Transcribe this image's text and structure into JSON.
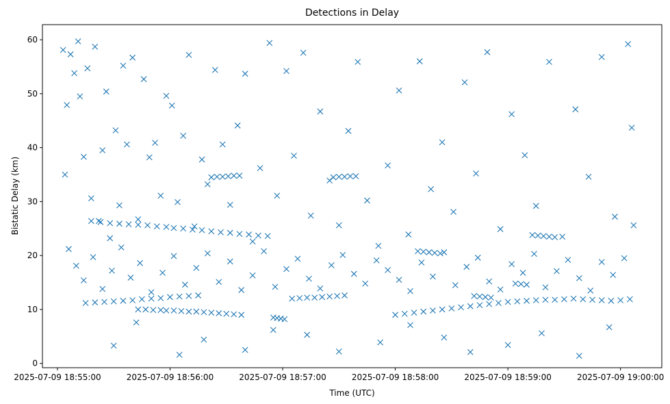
{
  "chart_data": {
    "type": "scatter",
    "title": "Detections in Delay",
    "xlabel": "Time (UTC)",
    "ylabel": "Bistatic Delay (km)",
    "x_tick_labels": [
      "2025-07-09 18:55:00",
      "2025-07-09 18:56:00",
      "2025-07-09 18:57:00",
      "2025-07-09 18:58:00",
      "2025-07-09 18:59:00",
      "2025-07-09 19:00:00"
    ],
    "y_ticks": [
      0,
      10,
      20,
      30,
      40,
      50,
      60
    ],
    "xlim": [
      "2025-07-09 18:54:52",
      "2025-07-09 19:00:22"
    ],
    "ylim": [
      -0.8,
      62.8
    ],
    "grid": false,
    "marker": "x",
    "color": "#1f77b4",
    "series": [
      {
        "x": [
          "2025-07-09 18:55:03",
          "2025-07-09 18:55:04",
          "2025-07-09 18:55:05",
          "2025-07-09 18:55:07",
          "2025-07-09 18:55:09",
          "2025-07-09 18:55:11",
          "2025-07-09 18:55:12",
          "2025-07-09 18:55:14",
          "2025-07-09 18:55:16",
          "2025-07-09 18:55:18",
          "2025-07-09 18:55:20",
          "2025-07-09 18:55:22",
          "2025-07-09 18:55:24",
          "2025-07-09 18:55:26",
          "2025-07-09 18:55:28",
          "2025-07-09 18:55:31",
          "2025-07-09 18:55:33",
          "2025-07-09 18:55:35",
          "2025-07-09 18:55:37",
          "2025-07-09 18:55:40",
          "2025-07-09 18:55:43",
          "2025-07-09 18:55:46",
          "2025-07-09 18:55:49",
          "2025-07-09 18:55:52",
          "2025-07-09 18:55:55",
          "2025-07-09 18:55:58",
          "2025-07-09 18:56:01",
          "2025-07-09 18:56:04",
          "2025-07-09 18:56:07",
          "2025-07-09 18:56:10",
          "2025-07-09 18:56:13",
          "2025-07-09 18:56:17",
          "2025-07-09 18:56:20",
          "2025-07-09 18:56:24",
          "2025-07-09 18:56:28",
          "2025-07-09 18:56:32",
          "2025-07-09 18:56:36",
          "2025-07-09 18:56:40",
          "2025-07-09 18:56:44",
          "2025-07-09 18:56:48",
          "2025-07-09 18:56:53",
          "2025-07-09 18:56:57",
          "2025-07-09 18:57:02",
          "2025-07-09 18:57:06",
          "2025-07-09 18:57:11",
          "2025-07-09 18:57:15",
          "2025-07-09 18:57:20",
          "2025-07-09 18:57:25",
          "2025-07-09 18:57:30",
          "2025-07-09 18:57:35",
          "2025-07-09 18:57:40",
          "2025-07-09 18:57:45",
          "2025-07-09 18:57:51",
          "2025-07-09 18:57:56",
          "2025-07-09 18:58:02",
          "2025-07-09 18:58:07",
          "2025-07-09 18:58:13",
          "2025-07-09 18:58:19",
          "2025-07-09 18:58:25",
          "2025-07-09 18:58:31",
          "2025-07-09 18:58:37",
          "2025-07-09 18:58:43",
          "2025-07-09 18:58:49",
          "2025-07-09 18:58:56",
          "2025-07-09 18:59:02",
          "2025-07-09 18:59:09",
          "2025-07-09 18:59:15",
          "2025-07-09 18:59:22",
          "2025-07-09 18:59:29",
          "2025-07-09 18:59:36",
          "2025-07-09 18:59:43",
          "2025-07-09 18:59:50",
          "2025-07-09 18:59:57",
          "2025-07-09 19:00:04",
          "2025-07-09 19:00:06",
          "2025-07-09 19:00:07",
          "2025-07-09 18:55:30",
          "2025-07-09 18:55:42",
          "2025-07-09 18:56:05",
          "2025-07-09 18:56:18",
          "2025-07-09 18:56:40",
          "2025-07-09 18:56:55",
          "2025-07-09 18:57:13",
          "2025-07-09 18:57:30",
          "2025-07-09 18:57:52",
          "2025-07-09 18:58:08",
          "2025-07-09 18:58:26",
          "2025-07-09 18:58:40",
          "2025-07-09 18:59:00",
          "2025-07-09 18:59:18",
          "2025-07-09 18:59:38",
          "2025-07-09 18:59:54"
        ],
        "y": [
          58.1,
          35,
          47.9,
          57.3,
          53.8,
          59.7,
          49.5,
          38.3,
          54.7,
          30.6,
          58.7,
          26.4,
          39.5,
          50.4,
          23.2,
          43.2,
          29.3,
          55.2,
          40.6,
          56.7,
          26.7,
          52.7,
          38.2,
          40.9,
          31.1,
          49.6,
          47.8,
          29.9,
          42.2,
          57.2,
          25.4,
          37.8,
          33.2,
          54.4,
          40.6,
          29.4,
          44.1,
          53.7,
          22.6,
          36.2,
          59.4,
          31.1,
          54.2,
          38.5,
          57.6,
          27.4,
          46.7,
          33.9,
          25.6,
          43.1,
          55.9,
          30.2,
          21.8,
          36.7,
          50.6,
          23.9,
          56,
          32.3,
          41,
          28.1,
          52.1,
          35.2,
          57.7,
          24.9,
          46.2,
          38.6,
          29.2,
          55.9,
          23.5,
          47.1,
          34.6,
          56.8,
          27.2,
          59.2,
          43.7,
          25.6,
          3.3,
          7.6,
          1.6,
          4.4,
          2.5,
          6.2,
          5.3,
          2.2,
          3.9,
          7.1,
          4.8,
          2.1,
          3.4,
          5.6,
          1.4,
          6.7
        ]
      },
      {
        "x": [
          "2025-07-09 18:55:18",
          "2025-07-09 18:55:23",
          "2025-07-09 18:55:28",
          "2025-07-09 18:55:33",
          "2025-07-09 18:55:38",
          "2025-07-09 18:55:43",
          "2025-07-09 18:55:48",
          "2025-07-09 18:55:53",
          "2025-07-09 18:55:58",
          "2025-07-09 18:56:02",
          "2025-07-09 18:56:07",
          "2025-07-09 18:56:12",
          "2025-07-09 18:56:17",
          "2025-07-09 18:56:22",
          "2025-07-09 18:56:27",
          "2025-07-09 18:56:32",
          "2025-07-09 18:56:37",
          "2025-07-09 18:56:42",
          "2025-07-09 18:56:47",
          "2025-07-09 18:56:52"
        ],
        "y": [
          26.4,
          26.2,
          26,
          25.9,
          25.8,
          25.7,
          25.6,
          25.4,
          25.3,
          25.1,
          25,
          24.8,
          24.7,
          24.5,
          24.3,
          24.2,
          24,
          23.9,
          23.7,
          23.6
        ]
      },
      {
        "x": [
          "2025-07-09 18:55:15",
          "2025-07-09 18:55:20",
          "2025-07-09 18:55:25",
          "2025-07-09 18:55:30",
          "2025-07-09 18:55:35",
          "2025-07-09 18:55:40",
          "2025-07-09 18:55:45",
          "2025-07-09 18:55:50",
          "2025-07-09 18:55:55",
          "2025-07-09 18:56:00",
          "2025-07-09 18:56:05",
          "2025-07-09 18:56:10",
          "2025-07-09 18:56:15",
          "2025-07-09 18:55:43",
          "2025-07-09 18:55:47",
          "2025-07-09 18:55:51",
          "2025-07-09 18:55:55",
          "2025-07-09 18:55:58",
          "2025-07-09 18:56:02",
          "2025-07-09 18:56:06",
          "2025-07-09 18:56:10",
          "2025-07-09 18:56:14",
          "2025-07-09 18:56:18",
          "2025-07-09 18:56:22",
          "2025-07-09 18:56:26",
          "2025-07-09 18:56:30",
          "2025-07-09 18:56:34",
          "2025-07-09 18:56:38"
        ],
        "y": [
          11.2,
          11.3,
          11.4,
          11.5,
          11.6,
          11.7,
          11.9,
          12,
          12.1,
          12.3,
          12.4,
          12.5,
          12.6,
          10,
          10,
          9.9,
          9.9,
          9.8,
          9.8,
          9.7,
          9.6,
          9.6,
          9.5,
          9.4,
          9.3,
          9.2,
          9.1,
          9
        ]
      },
      {
        "x": [
          "2025-07-09 18:56:22",
          "2025-07-09 18:56:25",
          "2025-07-09 18:56:28",
          "2025-07-09 18:56:31",
          "2025-07-09 18:56:34",
          "2025-07-09 18:56:37",
          "2025-07-09 18:57:27",
          "2025-07-09 18:57:30",
          "2025-07-09 18:57:33",
          "2025-07-09 18:57:36",
          "2025-07-09 18:57:39"
        ],
        "y": [
          34.5,
          34.6,
          34.6,
          34.7,
          34.8,
          34.8,
          34.5,
          34.6,
          34.6,
          34.7,
          34.7
        ]
      },
      {
        "x": [
          "2025-07-09 18:57:05",
          "2025-07-09 18:57:09",
          "2025-07-09 18:57:13",
          "2025-07-09 18:57:17",
          "2025-07-09 18:57:21",
          "2025-07-09 18:57:25",
          "2025-07-09 18:57:29",
          "2025-07-09 18:57:33",
          "2025-07-09 18:56:55",
          "2025-07-09 18:56:57",
          "2025-07-09 18:56:59",
          "2025-07-09 18:57:01"
        ],
        "y": [
          12,
          12.1,
          12.2,
          12.2,
          12.3,
          12.4,
          12.5,
          12.6,
          8.5,
          8.4,
          8.3,
          8.2
        ]
      },
      {
        "x": [
          "2025-07-09 18:58:00",
          "2025-07-09 18:58:05",
          "2025-07-09 18:58:10",
          "2025-07-09 18:58:15",
          "2025-07-09 18:58:20",
          "2025-07-09 18:58:25",
          "2025-07-09 18:58:30",
          "2025-07-09 18:58:35",
          "2025-07-09 18:58:40",
          "2025-07-09 18:58:45",
          "2025-07-09 18:58:50",
          "2025-07-09 18:58:55",
          "2025-07-09 18:59:00",
          "2025-07-09 18:59:05",
          "2025-07-09 18:59:10",
          "2025-07-09 18:59:15",
          "2025-07-09 18:59:20",
          "2025-07-09 18:59:25",
          "2025-07-09 18:59:30",
          "2025-07-09 18:59:35",
          "2025-07-09 18:59:40",
          "2025-07-09 18:59:45",
          "2025-07-09 18:59:50",
          "2025-07-09 18:59:55",
          "2025-07-09 19:00:00",
          "2025-07-09 19:00:05"
        ],
        "y": [
          9,
          9.2,
          9.4,
          9.6,
          9.8,
          10,
          10.2,
          10.4,
          10.6,
          10.8,
          11,
          11.2,
          11.4,
          11.5,
          11.6,
          11.7,
          11.8,
          11.8,
          11.9,
          12,
          11.9,
          11.8,
          11.7,
          11.6,
          11.7,
          11.9
        ]
      },
      {
        "x": [
          "2025-07-09 18:58:12",
          "2025-07-09 18:58:15",
          "2025-07-09 18:58:18",
          "2025-07-09 18:58:21",
          "2025-07-09 18:58:24",
          "2025-07-09 18:58:42",
          "2025-07-09 18:58:45",
          "2025-07-09 18:58:48",
          "2025-07-09 18:58:51",
          "2025-07-09 18:59:04",
          "2025-07-09 18:59:07",
          "2025-07-09 18:59:10",
          "2025-07-09 18:59:13",
          "2025-07-09 18:59:16",
          "2025-07-09 18:59:19",
          "2025-07-09 18:59:22",
          "2025-07-09 18:59:25"
        ],
        "y": [
          20.8,
          20.7,
          20.6,
          20.5,
          20.4,
          12.5,
          12.4,
          12.3,
          12.2,
          14.8,
          14.7,
          14.6,
          23.8,
          23.7,
          23.6,
          23.5,
          23.4
        ]
      },
      {
        "x": [
          "2025-07-09 18:55:06",
          "2025-07-09 18:55:10",
          "2025-07-09 18:55:14",
          "2025-07-09 18:55:19",
          "2025-07-09 18:55:24",
          "2025-07-09 18:55:29",
          "2025-07-09 18:55:34",
          "2025-07-09 18:55:39",
          "2025-07-09 18:55:44",
          "2025-07-09 18:55:50",
          "2025-07-09 18:55:56",
          "2025-07-09 18:56:02",
          "2025-07-09 18:56:08",
          "2025-07-09 18:56:14",
          "2025-07-09 18:56:20",
          "2025-07-09 18:56:26",
          "2025-07-09 18:56:32",
          "2025-07-09 18:56:38",
          "2025-07-09 18:56:44",
          "2025-07-09 18:56:50",
          "2025-07-09 18:56:56",
          "2025-07-09 18:57:02",
          "2025-07-09 18:57:08",
          "2025-07-09 18:57:14",
          "2025-07-09 18:57:20",
          "2025-07-09 18:57:26",
          "2025-07-09 18:57:32",
          "2025-07-09 18:57:38",
          "2025-07-09 18:57:44",
          "2025-07-09 18:57:50",
          "2025-07-09 18:57:56",
          "2025-07-09 18:58:02",
          "2025-07-09 18:58:08",
          "2025-07-09 18:58:14",
          "2025-07-09 18:58:20",
          "2025-07-09 18:58:26",
          "2025-07-09 18:58:32",
          "2025-07-09 18:58:38",
          "2025-07-09 18:58:44",
          "2025-07-09 18:58:50",
          "2025-07-09 18:58:56",
          "2025-07-09 18:59:02",
          "2025-07-09 18:59:08",
          "2025-07-09 18:59:14",
          "2025-07-09 18:59:20",
          "2025-07-09 18:59:26",
          "2025-07-09 18:59:32",
          "2025-07-09 18:59:38",
          "2025-07-09 18:59:44",
          "2025-07-09 18:59:50",
          "2025-07-09 18:59:56",
          "2025-07-09 19:00:02"
        ],
        "y": [
          21.2,
          18.1,
          15.4,
          19.7,
          13.8,
          17.2,
          21.5,
          15.9,
          18.6,
          13.2,
          16.8,
          19.9,
          14.6,
          17.7,
          20.4,
          15.1,
          18.9,
          13.6,
          16.3,
          20.8,
          14.2,
          17.5,
          19.4,
          15.7,
          13.9,
          18.2,
          20.1,
          16.6,
          14.8,
          19.1,
          17.3,
          15.5,
          13.4,
          18.7,
          16.1,
          20.6,
          14.5,
          17.9,
          19.6,
          15.2,
          13.7,
          18.4,
          16.8,
          20.3,
          14.1,
          17.1,
          19.2,
          15.8,
          13.5,
          18.8,
          16.4,
          19.5
        ]
      }
    ]
  }
}
